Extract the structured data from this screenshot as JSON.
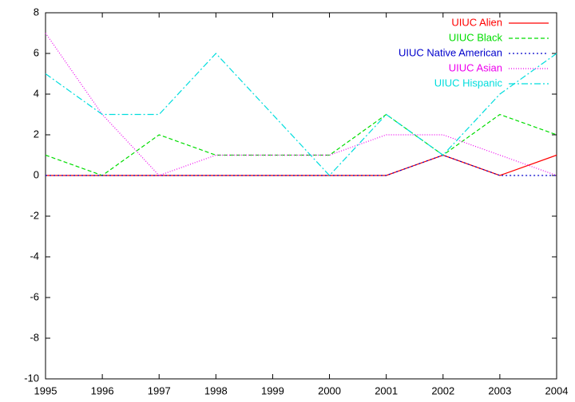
{
  "chart_data": {
    "type": "line",
    "x": [
      1995,
      1996,
      1997,
      1998,
      1999,
      2000,
      2001,
      2002,
      2003,
      2004
    ],
    "xlim": [
      1995,
      2004
    ],
    "xticks": [
      1995,
      1996,
      1997,
      1998,
      1999,
      2000,
      2001,
      2002,
      2003,
      2004
    ],
    "ylim": [
      -10,
      8
    ],
    "yticks": [
      -10,
      -8,
      -6,
      -4,
      -2,
      0,
      2,
      4,
      6,
      8
    ],
    "grid": false,
    "legend": "top-right",
    "series": [
      {
        "name": "UIUC Alien",
        "color": "#ff0000",
        "dash": "none",
        "values": [
          0,
          0,
          0,
          0,
          0,
          0,
          0,
          1,
          0,
          1
        ]
      },
      {
        "name": "UIUC Black",
        "color": "#00dd00",
        "dash": "5,3",
        "values": [
          1,
          0,
          2,
          1,
          1,
          1,
          3,
          1,
          3,
          2
        ]
      },
      {
        "name": "UIUC Native American",
        "color": "#0000cc",
        "dash": "2,3",
        "values": [
          0,
          0,
          0,
          0,
          0,
          0,
          0,
          1,
          0,
          0
        ]
      },
      {
        "name": "UIUC Asian",
        "color": "#ee00ee",
        "dash": "1,2",
        "values": [
          7,
          3,
          0,
          1,
          1,
          1,
          2,
          2,
          1,
          0
        ]
      },
      {
        "name": "UIUC Hispanic",
        "color": "#00dddd",
        "dash": "8,3,2,3",
        "values": [
          5,
          3,
          3,
          6,
          3,
          0,
          3,
          1,
          4,
          6
        ]
      }
    ]
  }
}
